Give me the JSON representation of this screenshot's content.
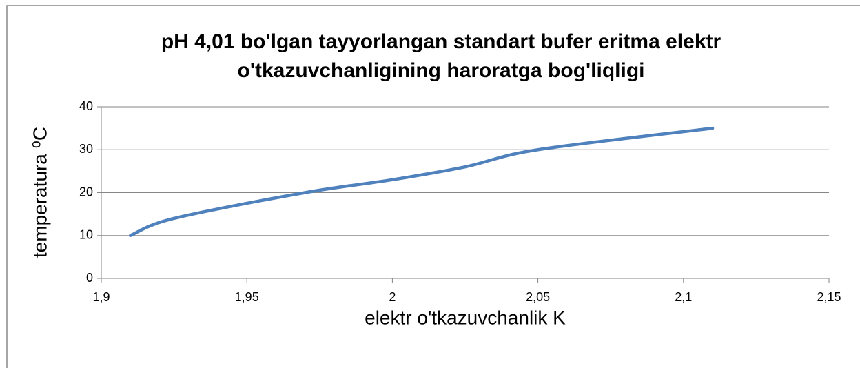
{
  "chart_data": {
    "type": "line",
    "title": [
      "pH 4,01 bo'lgan tayyorlangan standart bufer eritma elektr",
      "o'tkazuvchanligining haroratga bog'liqligi"
    ],
    "xlabel": "elektr o'tkazuvchanlik K",
    "ylabel": "temperatura ⁰C",
    "x": [
      1.91,
      1.925,
      1.97,
      2.0,
      2.025,
      2.05,
      2.11
    ],
    "series": [
      {
        "name": "temperatura",
        "color": "#4f81bd",
        "values": [
          10,
          14,
          20,
          23,
          26,
          30,
          35
        ]
      }
    ],
    "xlim": [
      1.9,
      2.15
    ],
    "xticks": [
      {
        "value": 1.9,
        "label": "1,9"
      },
      {
        "value": 1.95,
        "label": "1,95"
      },
      2,
      {
        "value": 2.05,
        "label": "2,05"
      },
      {
        "value": 2.1,
        "label": "2,1"
      },
      {
        "value": 2.15,
        "label": "2,15"
      }
    ],
    "ylim": [
      0,
      40
    ],
    "yticks": [
      0,
      10,
      20,
      30,
      40
    ],
    "grid": true,
    "smooth": true
  }
}
